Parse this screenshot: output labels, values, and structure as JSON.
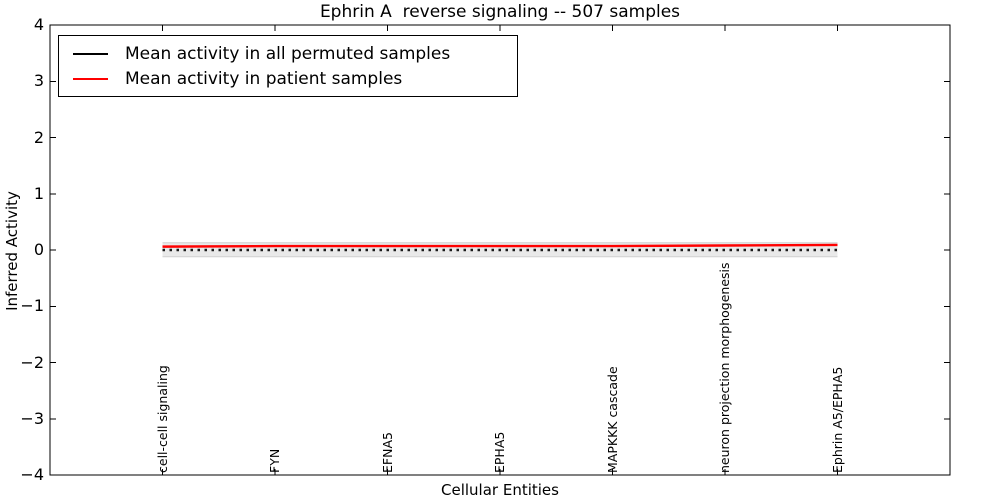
{
  "title": "Ephrin A  reverse signaling -- 507 samples",
  "axes": {
    "ylabel": "Inferred Activity",
    "xlabel": "Cellular Entities",
    "ytick_labels": [
      "4",
      "3",
      "2",
      "1",
      "0",
      "−1",
      "−2",
      "−3",
      "−4"
    ]
  },
  "legend": {
    "items": [
      {
        "label": "Mean activity in all permuted samples",
        "color": "#000000"
      },
      {
        "label": "Mean activity in patient samples",
        "color": "#ff0000"
      }
    ]
  },
  "chart_data": {
    "type": "line",
    "title": "Ephrin A  reverse signaling -- 507 samples",
    "xlabel": "Cellular Entities",
    "ylabel": "Inferred Activity",
    "categories": [
      "cell-cell signaling",
      "FYN",
      "EFNA5",
      "EPHA5",
      "MAPKKK cascade",
      "neuron projection morphogenesis",
      "Ephrin A5/EPHA5"
    ],
    "series": [
      {
        "name": "Mean activity in all permuted samples",
        "color": "#1a1a1a",
        "style": "dashed",
        "values": [
          0.0,
          0.0,
          0.0,
          0.0,
          0.0,
          0.0,
          0.0
        ]
      },
      {
        "name": "Mean activity in patient samples",
        "color": "#ff0000",
        "style": "solid",
        "values": [
          0.06,
          0.07,
          0.07,
          0.07,
          0.07,
          0.08,
          0.09
        ]
      }
    ],
    "band": {
      "name": "permuted samples spread",
      "fill_color": "#e9e9e9",
      "edge_color": "#cfcfcf",
      "upper": [
        0.13,
        0.13,
        0.13,
        0.13,
        0.13,
        0.13,
        0.13
      ],
      "lower": [
        -0.12,
        -0.12,
        -0.12,
        -0.12,
        -0.12,
        -0.12,
        -0.12
      ]
    },
    "ylim": [
      -4,
      4
    ],
    "xlim": [
      -1,
      7
    ],
    "yticks": [
      4,
      3,
      2,
      1,
      0,
      -1,
      -2,
      -3,
      -4
    ],
    "grid": false,
    "legend_position": "upper left",
    "tick_direction": "in"
  }
}
